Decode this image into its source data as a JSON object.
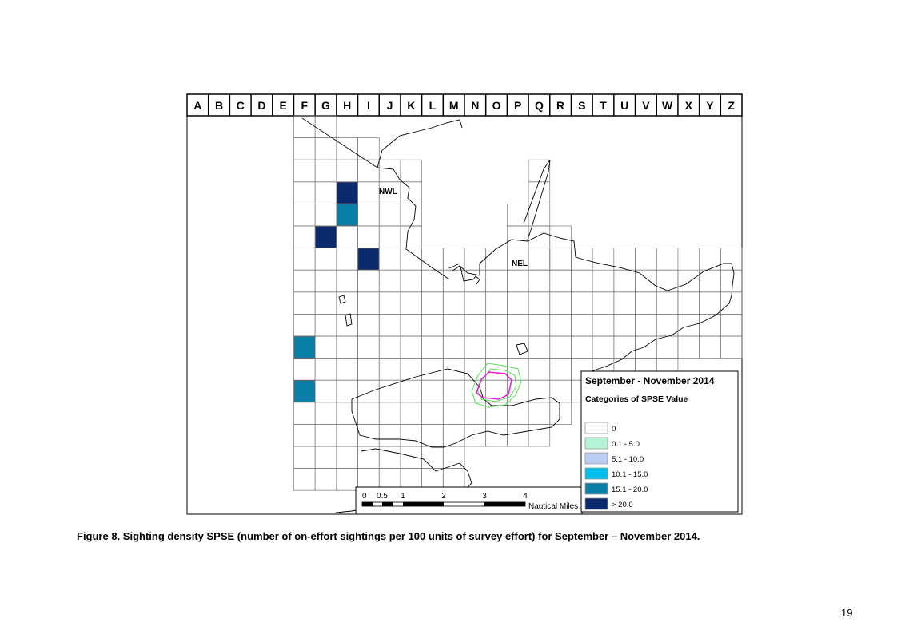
{
  "map": {
    "grid_columns": [
      "A",
      "B",
      "C",
      "D",
      "E",
      "F",
      "G",
      "H",
      "I",
      "J",
      "K",
      "L",
      "M",
      "N",
      "O",
      "P",
      "Q",
      "R",
      "S",
      "T",
      "U",
      "V",
      "W",
      "X",
      "Y",
      "Z"
    ],
    "area_labels": [
      {
        "name": "nwl-label",
        "text": "NWL"
      },
      {
        "name": "nel-label",
        "text": "NEL"
      }
    ],
    "shaded_cells": [
      {
        "col": "H",
        "row": 4,
        "category": "> 20.0"
      },
      {
        "col": "H",
        "row": 5,
        "category": "15.1 - 20.0"
      },
      {
        "col": "G",
        "row": 6,
        "category": "> 20.0"
      },
      {
        "col": "I",
        "row": 7,
        "category": "> 20.0"
      },
      {
        "col": "F",
        "row": 11,
        "category": "15.1 - 20.0"
      },
      {
        "col": "F",
        "row": 13,
        "category": "15.1 - 20.0"
      }
    ],
    "legend": {
      "title": "September - November 2014",
      "subtitle": "Categories of SPSE Value",
      "items": [
        {
          "label": "0",
          "color": "#ffffff"
        },
        {
          "label": "0.1 - 5.0",
          "color": "#b5f5d6"
        },
        {
          "label": "5.1 - 10.0",
          "color": "#b9cdf5"
        },
        {
          "label": "10.1 - 15.0",
          "color": "#00bfef"
        },
        {
          "label": "15.1 - 20.0",
          "color": "#0a7fa8"
        },
        {
          "label": "> 20.0",
          "color": "#0b2a6e"
        }
      ]
    },
    "scale_bar": {
      "ticks": [
        "0",
        "0.5",
        "1",
        "2",
        "3",
        "4"
      ],
      "unit": "Nautical Miles"
    }
  },
  "caption": "Figure 8. Sighting density SPSE (number of on-effort sightings per 100 units of survey effort) for September – November 2014.",
  "page_number": "19"
}
